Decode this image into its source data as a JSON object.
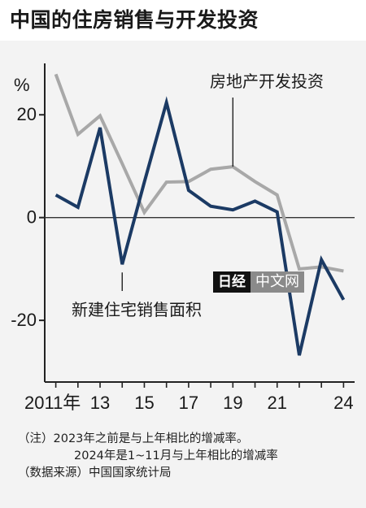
{
  "title": "中国的住房销售与开发投资",
  "logo": {
    "part1": "日经",
    "part2": "中文网"
  },
  "notes": [
    "（注）2023年之前是与上年相比的增减率。",
    "2024年是1~11月与上年相比的增减率",
    "（数据来源）中国国家统计局"
  ],
  "colors": {
    "sales": "#1b3a64",
    "investment": "#a8a8a8",
    "zero_line": "#333333"
  },
  "chart_data": {
    "type": "line",
    "title": "中国的住房销售与开发投资",
    "unit_label": "%",
    "x": [
      2011,
      2012,
      2013,
      2014,
      2015,
      2016,
      2017,
      2018,
      2019,
      2020,
      2021,
      2022,
      2023,
      2024
    ],
    "x_tick_labels": [
      {
        "x": 2011,
        "label": "2011年"
      },
      {
        "x": 2013,
        "label": "13"
      },
      {
        "x": 2015,
        "label": "15"
      },
      {
        "x": 2017,
        "label": "17"
      },
      {
        "x": 2019,
        "label": "19"
      },
      {
        "x": 2021,
        "label": "21"
      },
      {
        "x": 2024,
        "label": "24"
      }
    ],
    "y_ticks": [
      20,
      0,
      -20
    ],
    "y_tick_labels": [
      "20",
      "0",
      "-20"
    ],
    "ylim": [
      -32,
      30
    ],
    "grid": false,
    "series": [
      {
        "name": "房地产开发投资",
        "color": "#a8a8a8",
        "values": [
          27.9,
          16.2,
          19.8,
          10.5,
          1.0,
          6.9,
          7.0,
          9.4,
          9.9,
          7.0,
          4.4,
          -10.0,
          -9.6,
          -10.4
        ]
      },
      {
        "name": "新建住宅销售面积",
        "color": "#1b3a64",
        "values": [
          4.4,
          2.0,
          17.5,
          -9.1,
          6.9,
          22.4,
          5.3,
          2.2,
          1.5,
          3.2,
          1.1,
          -26.8,
          -8.2,
          -16.0
        ]
      }
    ]
  }
}
